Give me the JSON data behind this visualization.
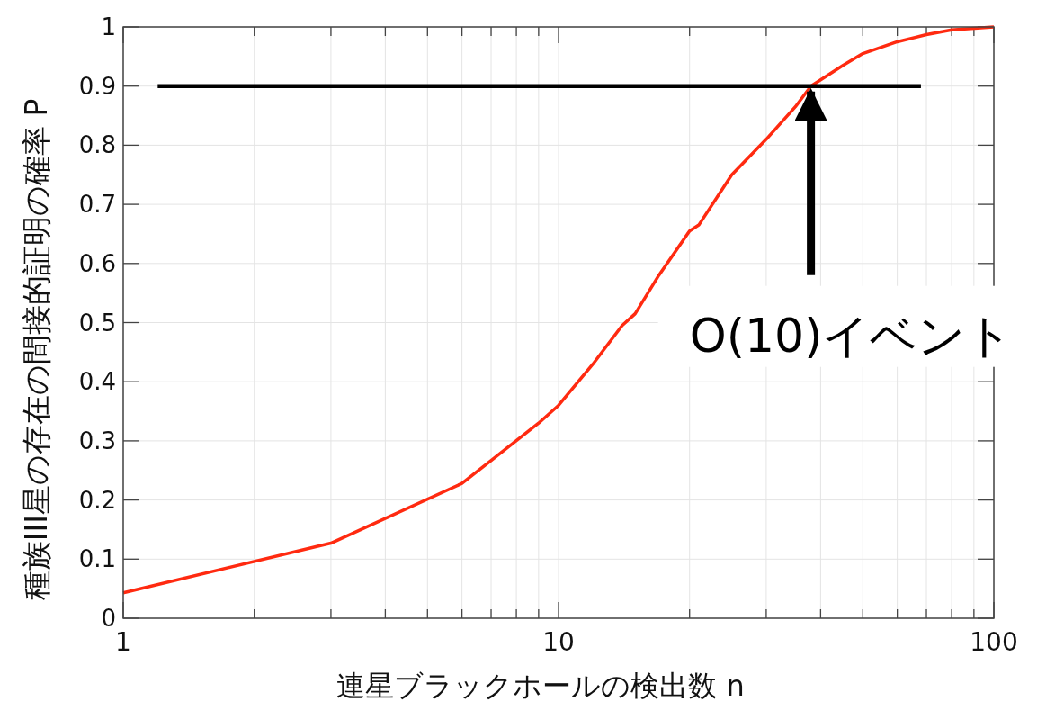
{
  "chart_data": {
    "type": "line",
    "xlabel": "連星ブラックホールの検出数 n",
    "ylabel": "種族III星の存在の間接的証明の確率 P",
    "log": "x",
    "xlim": [
      1,
      100
    ],
    "xticks": [
      1,
      {
        "value": 2,
        "label": null
      },
      {
        "value": 3,
        "label": null
      },
      {
        "value": 4,
        "label": null
      },
      {
        "value": 5,
        "label": null
      },
      {
        "value": 6,
        "label": null
      },
      {
        "value": 7,
        "label": null
      },
      {
        "value": 8,
        "label": null
      },
      {
        "value": 9,
        "label": null
      },
      10,
      {
        "value": 20,
        "label": null
      },
      {
        "value": 30,
        "label": null
      },
      {
        "value": 40,
        "label": null
      },
      {
        "value": 50,
        "label": null
      },
      {
        "value": 60,
        "label": null
      },
      {
        "value": 70,
        "label": null
      },
      {
        "value": 80,
        "label": null
      },
      {
        "value": 90,
        "label": null
      },
      100
    ],
    "ylim": [
      0,
      1
    ],
    "yticks": [
      0,
      0.1,
      0.2,
      0.3,
      0.4,
      0.5,
      0.6,
      0.7,
      0.8,
      0.9,
      1
    ],
    "grid": true,
    "series": [
      {
        "color": "#ff2a10",
        "x": [
          1,
          3,
          6,
          9,
          10,
          12,
          14,
          15,
          17,
          20,
          21,
          25,
          30,
          35,
          38,
          45,
          50,
          60,
          70,
          80,
          100
        ],
        "values": [
          0.043,
          0.127,
          0.228,
          0.33,
          0.36,
          0.43,
          0.495,
          0.515,
          0.58,
          0.655,
          0.665,
          0.75,
          0.81,
          0.865,
          0.9,
          0.935,
          0.955,
          0.975,
          0.987,
          0.995,
          1.0
        ]
      },
      {
        "color": "#000000",
        "x": [
          1.2,
          68
        ],
        "values": [
          0.9,
          0.9
        ]
      }
    ],
    "annotations": [
      {
        "text": "O(10)イベント",
        "x": 38,
        "y": 0.9
      }
    ]
  }
}
